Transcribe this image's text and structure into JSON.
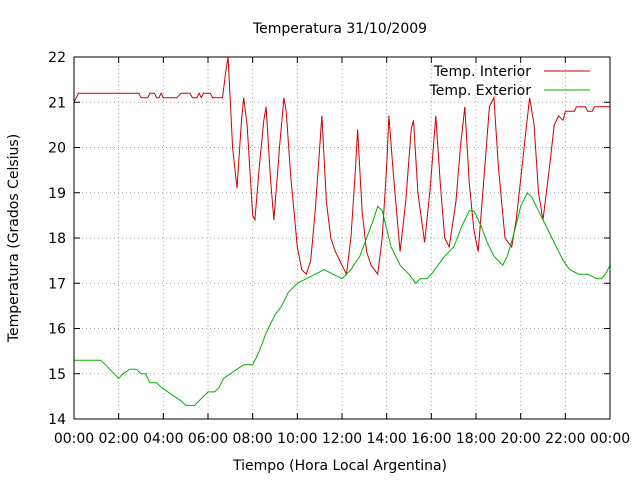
{
  "chart_data": {
    "type": "line",
    "title": "Temperatura 31/10/2009",
    "xlabel": "Tiempo (Hora Local Argentina)",
    "ylabel": "Temperatura (Grados Celsius)",
    "xlim": [
      0,
      24
    ],
    "ylim": [
      14,
      22
    ],
    "x_ticks": [
      {
        "v": 0,
        "label": "00:00"
      },
      {
        "v": 2,
        "label": "02:00"
      },
      {
        "v": 4,
        "label": "04:00"
      },
      {
        "v": 6,
        "label": "06:00"
      },
      {
        "v": 8,
        "label": "08:00"
      },
      {
        "v": 10,
        "label": "10:00"
      },
      {
        "v": 12,
        "label": "12:00"
      },
      {
        "v": 14,
        "label": "14:00"
      },
      {
        "v": 16,
        "label": "16:00"
      },
      {
        "v": 18,
        "label": "18:00"
      },
      {
        "v": 20,
        "label": "20:00"
      },
      {
        "v": 22,
        "label": "22:00"
      },
      {
        "v": 24,
        "label": "00:00"
      }
    ],
    "y_ticks": [
      {
        "v": 14,
        "label": "14"
      },
      {
        "v": 15,
        "label": "15"
      },
      {
        "v": 16,
        "label": "16"
      },
      {
        "v": 17,
        "label": "17"
      },
      {
        "v": 18,
        "label": "18"
      },
      {
        "v": 19,
        "label": "19"
      },
      {
        "v": 20,
        "label": "20"
      },
      {
        "v": 21,
        "label": "21"
      },
      {
        "v": 22,
        "label": "22"
      }
    ],
    "grid": true,
    "legend_position": "top-right",
    "series": [
      {
        "name": "Temp. Interior",
        "color": "#cc0000",
        "points": [
          [
            0,
            21.0
          ],
          [
            0.2,
            21.2
          ],
          [
            2.9,
            21.2
          ],
          [
            3.0,
            21.1
          ],
          [
            3.3,
            21.1
          ],
          [
            3.4,
            21.2
          ],
          [
            3.6,
            21.2
          ],
          [
            3.7,
            21.1
          ],
          [
            3.8,
            21.1
          ],
          [
            3.9,
            21.2
          ],
          [
            4.0,
            21.1
          ],
          [
            4.6,
            21.1
          ],
          [
            4.8,
            21.2
          ],
          [
            5.2,
            21.2
          ],
          [
            5.3,
            21.1
          ],
          [
            5.5,
            21.1
          ],
          [
            5.6,
            21.2
          ],
          [
            5.7,
            21.1
          ],
          [
            5.8,
            21.2
          ],
          [
            6.1,
            21.2
          ],
          [
            6.2,
            21.1
          ],
          [
            6.65,
            21.1
          ],
          [
            6.8,
            21.7
          ],
          [
            6.9,
            22.0
          ],
          [
            7.1,
            20.0
          ],
          [
            7.3,
            19.1
          ],
          [
            7.5,
            20.6
          ],
          [
            7.6,
            21.1
          ],
          [
            7.75,
            20.5
          ],
          [
            8.0,
            18.5
          ],
          [
            8.1,
            18.4
          ],
          [
            8.3,
            19.6
          ],
          [
            8.5,
            20.6
          ],
          [
            8.6,
            20.9
          ],
          [
            8.8,
            19.3
          ],
          [
            8.95,
            18.4
          ],
          [
            9.2,
            20.0
          ],
          [
            9.4,
            21.1
          ],
          [
            9.5,
            20.8
          ],
          [
            9.7,
            19.4
          ],
          [
            10.0,
            17.8
          ],
          [
            10.2,
            17.3
          ],
          [
            10.4,
            17.2
          ],
          [
            10.6,
            17.5
          ],
          [
            10.8,
            18.6
          ],
          [
            11.0,
            20.0
          ],
          [
            11.1,
            20.7
          ],
          [
            11.3,
            18.8
          ],
          [
            11.5,
            18.0
          ],
          [
            11.7,
            17.7
          ],
          [
            11.9,
            17.5
          ],
          [
            12.1,
            17.3
          ],
          [
            12.2,
            17.2
          ],
          [
            12.4,
            18.0
          ],
          [
            12.6,
            19.5
          ],
          [
            12.7,
            20.4
          ],
          [
            12.9,
            18.6
          ],
          [
            13.1,
            17.7
          ],
          [
            13.3,
            17.4
          ],
          [
            13.45,
            17.3
          ],
          [
            13.6,
            17.2
          ],
          [
            13.8,
            18.0
          ],
          [
            14.0,
            19.6
          ],
          [
            14.1,
            20.7
          ],
          [
            14.3,
            19.4
          ],
          [
            14.6,
            17.7
          ],
          [
            14.85,
            18.8
          ],
          [
            15.1,
            20.4
          ],
          [
            15.2,
            20.6
          ],
          [
            15.4,
            19.0
          ],
          [
            15.7,
            17.9
          ],
          [
            15.95,
            19.1
          ],
          [
            16.2,
            20.7
          ],
          [
            16.4,
            19.2
          ],
          [
            16.6,
            18.0
          ],
          [
            16.8,
            17.8
          ],
          [
            17.1,
            18.8
          ],
          [
            17.3,
            20.0
          ],
          [
            17.5,
            20.9
          ],
          [
            17.7,
            19.2
          ],
          [
            17.9,
            18.2
          ],
          [
            18.1,
            17.7
          ],
          [
            18.4,
            19.6
          ],
          [
            18.6,
            20.9
          ],
          [
            18.8,
            21.1
          ],
          [
            19.0,
            19.6
          ],
          [
            19.3,
            18.0
          ],
          [
            19.6,
            17.8
          ],
          [
            19.8,
            18.4
          ],
          [
            20.0,
            19.3
          ],
          [
            20.2,
            20.2
          ],
          [
            20.4,
            21.1
          ],
          [
            20.6,
            20.5
          ],
          [
            20.8,
            19.0
          ],
          [
            21.0,
            18.4
          ],
          [
            21.3,
            19.6
          ],
          [
            21.5,
            20.5
          ],
          [
            21.7,
            20.7
          ],
          [
            21.9,
            20.6
          ],
          [
            22.0,
            20.8
          ],
          [
            22.4,
            20.8
          ],
          [
            22.5,
            20.9
          ],
          [
            22.9,
            20.9
          ],
          [
            23.0,
            20.8
          ],
          [
            23.2,
            20.8
          ],
          [
            23.3,
            20.9
          ],
          [
            23.9,
            20.9
          ],
          [
            24.0,
            20.9
          ]
        ]
      },
      {
        "name": "Temp. Exterior",
        "color": "#00b000",
        "points": [
          [
            0,
            15.3
          ],
          [
            1.2,
            15.3
          ],
          [
            1.4,
            15.2
          ],
          [
            1.6,
            15.1
          ],
          [
            1.8,
            15.0
          ],
          [
            2.0,
            14.9
          ],
          [
            2.2,
            15.0
          ],
          [
            2.5,
            15.1
          ],
          [
            2.8,
            15.1
          ],
          [
            3.0,
            15.0
          ],
          [
            3.2,
            15.0
          ],
          [
            3.4,
            14.8
          ],
          [
            3.7,
            14.8
          ],
          [
            3.9,
            14.7
          ],
          [
            4.2,
            14.6
          ],
          [
            4.5,
            14.5
          ],
          [
            4.8,
            14.4
          ],
          [
            5.0,
            14.3
          ],
          [
            5.4,
            14.3
          ],
          [
            5.6,
            14.4
          ],
          [
            5.8,
            14.5
          ],
          [
            6.0,
            14.6
          ],
          [
            6.3,
            14.6
          ],
          [
            6.5,
            14.7
          ],
          [
            6.7,
            14.9
          ],
          [
            7.0,
            15.0
          ],
          [
            7.3,
            15.1
          ],
          [
            7.6,
            15.2
          ],
          [
            8.0,
            15.2
          ],
          [
            8.3,
            15.5
          ],
          [
            8.6,
            15.9
          ],
          [
            9.0,
            16.3
          ],
          [
            9.3,
            16.5
          ],
          [
            9.6,
            16.8
          ],
          [
            10.0,
            17.0
          ],
          [
            10.4,
            17.1
          ],
          [
            10.8,
            17.2
          ],
          [
            11.2,
            17.3
          ],
          [
            11.6,
            17.2
          ],
          [
            12.0,
            17.1
          ],
          [
            12.4,
            17.3
          ],
          [
            12.8,
            17.6
          ],
          [
            13.1,
            18.0
          ],
          [
            13.4,
            18.4
          ],
          [
            13.6,
            18.7
          ],
          [
            13.8,
            18.6
          ],
          [
            14.0,
            18.2
          ],
          [
            14.2,
            17.8
          ],
          [
            14.4,
            17.6
          ],
          [
            14.6,
            17.4
          ],
          [
            14.8,
            17.3
          ],
          [
            15.0,
            17.2
          ],
          [
            15.3,
            17.0
          ],
          [
            15.5,
            17.1
          ],
          [
            15.8,
            17.1
          ],
          [
            16.0,
            17.2
          ],
          [
            16.3,
            17.4
          ],
          [
            16.6,
            17.6
          ],
          [
            17.0,
            17.8
          ],
          [
            17.4,
            18.3
          ],
          [
            17.7,
            18.6
          ],
          [
            17.9,
            18.6
          ],
          [
            18.2,
            18.3
          ],
          [
            18.5,
            17.9
          ],
          [
            18.8,
            17.6
          ],
          [
            19.0,
            17.5
          ],
          [
            19.2,
            17.4
          ],
          [
            19.4,
            17.6
          ],
          [
            19.7,
            18.1
          ],
          [
            20.0,
            18.7
          ],
          [
            20.3,
            19.0
          ],
          [
            20.5,
            18.9
          ],
          [
            20.7,
            18.7
          ],
          [
            21.0,
            18.4
          ],
          [
            21.3,
            18.1
          ],
          [
            21.6,
            17.8
          ],
          [
            21.9,
            17.5
          ],
          [
            22.2,
            17.3
          ],
          [
            22.6,
            17.2
          ],
          [
            23.0,
            17.2
          ],
          [
            23.4,
            17.1
          ],
          [
            23.6,
            17.1
          ],
          [
            23.8,
            17.2
          ],
          [
            24.0,
            17.4
          ]
        ]
      }
    ]
  }
}
